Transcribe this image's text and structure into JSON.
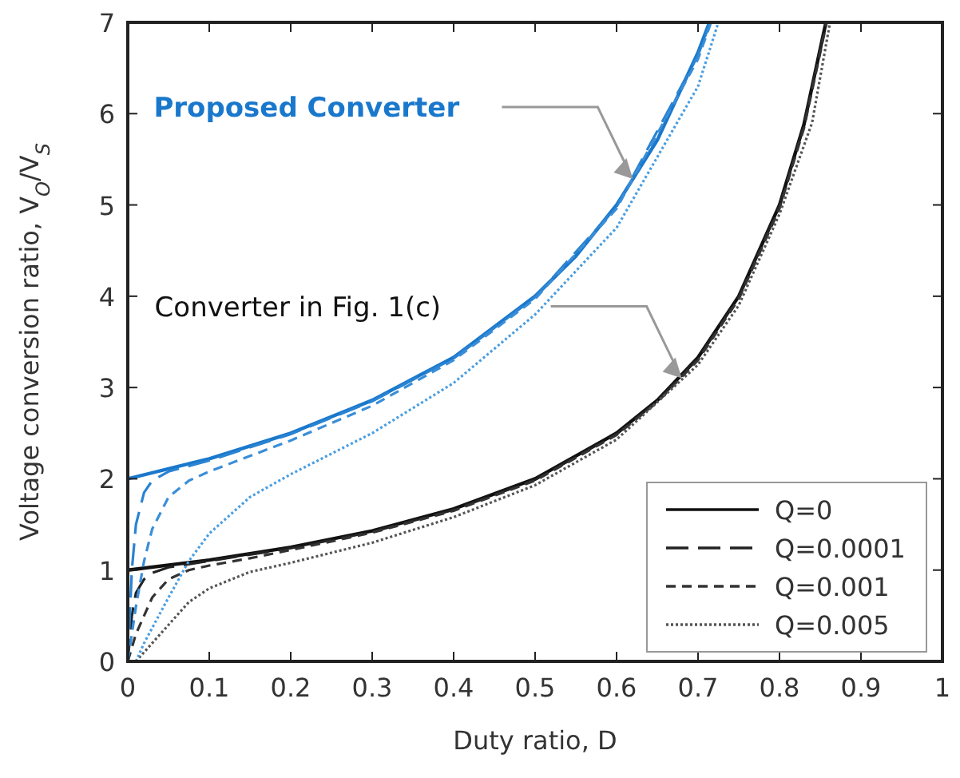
{
  "chart_data": {
    "type": "line",
    "xlabel": "Duty ratio, D",
    "ylabel": "Voltage conversion ratio, V$_{O}$/V$_{S}$",
    "xlim": [
      0,
      1
    ],
    "ylim": [
      0,
      7
    ],
    "xticks": [
      0,
      0.1,
      0.2,
      0.3,
      0.4,
      0.5,
      0.6,
      0.7,
      0.8,
      0.9,
      1
    ],
    "yticks": [
      0,
      1,
      2,
      3,
      4,
      5,
      6,
      7
    ],
    "grid": false,
    "legend": "bottom right",
    "marker": "none",
    "annotations": [
      "Proposed Converter",
      "Converter in Fig. 1(c)"
    ],
    "series": [
      {
        "name": "Q=0",
        "color": "#111111",
        "line_style": "solid",
        "x": [
          0,
          0.1,
          0.2,
          0.3,
          0.4,
          0.5,
          0.6,
          0.65,
          0.7,
          0.75,
          0.8,
          0.83,
          0.857
        ],
        "values": [
          1,
          1.11,
          1.25,
          1.43,
          1.67,
          2,
          2.5,
          2.86,
          3.33,
          4,
          5,
          5.88,
          7
        ]
      },
      {
        "name": "Q=0.0001",
        "color": "#222222",
        "line_style": "longdash",
        "x": [
          0,
          0.005,
          0.01,
          0.02,
          0.03,
          0.05,
          0.1,
          0.2,
          0.3,
          0.4,
          0.5,
          0.6,
          0.65,
          0.7,
          0.75,
          0.8,
          0.83,
          0.857
        ],
        "values": [
          0,
          0.5,
          0.75,
          0.9,
          0.97,
          1.03,
          1.1,
          1.24,
          1.42,
          1.66,
          1.99,
          2.49,
          2.85,
          3.32,
          3.99,
          4.99,
          5.87,
          7
        ]
      },
      {
        "name": "Q=0.001",
        "color": "#333333",
        "line_style": "dashed",
        "x": [
          0,
          0.01,
          0.02,
          0.03,
          0.05,
          0.075,
          0.1,
          0.15,
          0.2,
          0.3,
          0.4,
          0.5,
          0.6,
          0.65,
          0.7,
          0.75,
          0.8,
          0.83,
          0.858
        ],
        "values": [
          0,
          0.3,
          0.5,
          0.7,
          0.9,
          1,
          1.05,
          1.13,
          1.22,
          1.41,
          1.65,
          1.98,
          2.48,
          2.84,
          3.3,
          3.97,
          4.96,
          5.84,
          7
        ]
      },
      {
        "name": "Q=0.005",
        "color": "#555555",
        "line_style": "dotted",
        "x": [
          0.01,
          0.02,
          0.05,
          0.075,
          0.1,
          0.15,
          0.2,
          0.3,
          0.4,
          0.5,
          0.6,
          0.7,
          0.75,
          0.8,
          0.84,
          0.862
        ],
        "values": [
          0,
          0.1,
          0.4,
          0.65,
          0.8,
          0.98,
          1.08,
          1.3,
          1.58,
          1.93,
          2.43,
          3.25,
          3.9,
          4.9,
          5.9,
          7
        ]
      },
      {
        "color": "#1a78cc",
        "line_style": "solid",
        "x": [
          0,
          0.1,
          0.2,
          0.3,
          0.4,
          0.5,
          0.55,
          0.6,
          0.65,
          0.7,
          0.714
        ],
        "values": [
          2,
          2.22,
          2.5,
          2.86,
          3.33,
          4,
          4.44,
          5,
          5.71,
          6.67,
          7
        ]
      },
      {
        "color": "#2a84d2",
        "line_style": "longdash",
        "x": [
          0,
          0.005,
          0.01,
          0.02,
          0.03,
          0.05,
          0.1,
          0.2,
          0.3,
          0.4,
          0.5,
          0.6,
          0.7,
          0.715
        ],
        "values": [
          0,
          1,
          1.5,
          1.85,
          1.98,
          2.08,
          2.2,
          2.49,
          2.85,
          3.32,
          3.99,
          4.98,
          6.64,
          7
        ]
      },
      {
        "color": "#3a8ed8",
        "line_style": "dashed",
        "x": [
          0,
          0.01,
          0.02,
          0.03,
          0.05,
          0.075,
          0.1,
          0.15,
          0.2,
          0.3,
          0.4,
          0.5,
          0.6,
          0.7,
          0.716
        ],
        "values": [
          0,
          0.6,
          1.1,
          1.45,
          1.8,
          1.98,
          2.08,
          2.25,
          2.42,
          2.8,
          3.3,
          3.97,
          4.96,
          6.6,
          7
        ]
      },
      {
        "color": "#4a9ee0",
        "line_style": "dotted",
        "x": [
          0.01,
          0.02,
          0.05,
          0.075,
          0.1,
          0.15,
          0.2,
          0.3,
          0.4,
          0.5,
          0.6,
          0.7,
          0.725
        ],
        "values": [
          0,
          0.2,
          0.7,
          1.1,
          1.4,
          1.8,
          2.05,
          2.5,
          3.05,
          3.8,
          4.75,
          6.3,
          7
        ]
      }
    ]
  }
}
